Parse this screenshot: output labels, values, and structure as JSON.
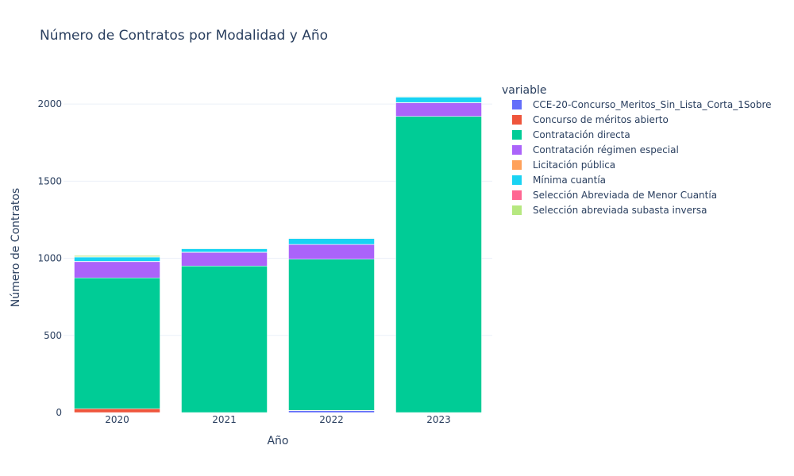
{
  "chart_data": {
    "type": "bar",
    "stacked": true,
    "title": "Número de Contratos por Modalidad y Año",
    "xlabel": "Año",
    "ylabel": "Número de Contratos",
    "legend_title": "variable",
    "legend_position": "right",
    "grid": true,
    "ylim": [
      0,
      2160
    ],
    "yticks": [
      0,
      500,
      1000,
      1500,
      2000
    ],
    "categories": [
      "2020",
      "2021",
      "2022",
      "2023"
    ],
    "series": [
      {
        "name": "CCE-20-Concurso_Meritos_Sin_Lista_Corta_1Sobre",
        "color": "#636efa",
        "values": [
          0,
          0,
          12,
          0
        ]
      },
      {
        "name": "Concurso de méritos abierto",
        "color": "#ef553b",
        "values": [
          25,
          0,
          2,
          0
        ]
      },
      {
        "name": "Contratación directa",
        "color": "#00cc96",
        "values": [
          848,
          950,
          980,
          1920
        ]
      },
      {
        "name": "Contratación régimen especial",
        "color": "#ab63fa",
        "values": [
          105,
          88,
          95,
          88
        ]
      },
      {
        "name": "Licitación pública",
        "color": "#ffa15a",
        "values": [
          2,
          2,
          1,
          2
        ]
      },
      {
        "name": "Mínima cuantía",
        "color": "#19d3f3",
        "values": [
          28,
          22,
          38,
          35
        ]
      },
      {
        "name": "Selección Abreviada de Menor Cuantía",
        "color": "#ff6692",
        "values": [
          2,
          2,
          2,
          2
        ]
      },
      {
        "name": "Selección abreviada subasta inversa",
        "color": "#b6e880",
        "values": [
          8,
          3,
          3,
          3
        ]
      }
    ]
  }
}
